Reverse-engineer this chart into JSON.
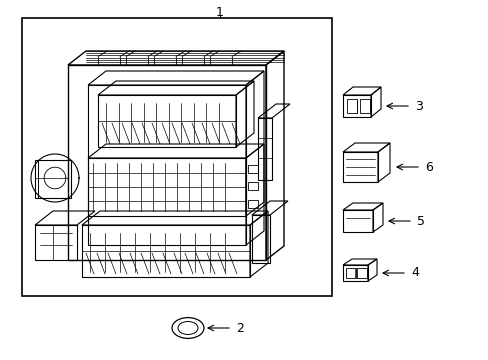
{
  "bg_color": "#ffffff",
  "line_color": "#000000",
  "lw": 0.7,
  "fig_width": 4.89,
  "fig_height": 3.6,
  "dpi": 100
}
